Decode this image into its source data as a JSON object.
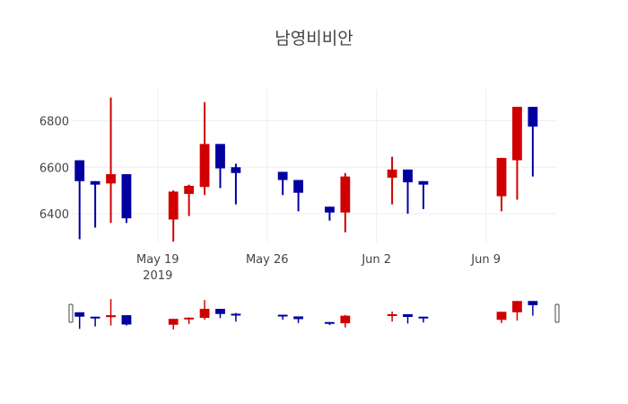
{
  "chart_data": {
    "type": "candlestick",
    "title": "남영비비안",
    "xlabel": "",
    "ylabel": "",
    "increasing_color": "#d10000",
    "decreasing_color": "#0000a0",
    "grid": true,
    "ylim": [
      6260,
      6900
    ],
    "yticks": [
      6400,
      6600,
      6800
    ],
    "xticks": [
      {
        "date": "2019-05-19",
        "label": "May 19",
        "sublabel": "2019"
      },
      {
        "date": "2019-05-26",
        "label": "May 26",
        "sublabel": ""
      },
      {
        "date": "2019-06-02",
        "label": "Jun 2",
        "sublabel": ""
      },
      {
        "date": "2019-06-09",
        "label": "Jun 9",
        "sublabel": ""
      }
    ],
    "xrange": [
      "2019-05-13T12:00",
      "2019-06-13T12:00"
    ],
    "rangeslider": true,
    "candles": [
      {
        "date": "2019-05-14",
        "open": 6630,
        "high": 6630,
        "low": 6290,
        "close": 6540
      },
      {
        "date": "2019-05-15",
        "open": 6540,
        "high": 6540,
        "low": 6340,
        "close": 6525
      },
      {
        "date": "2019-05-16",
        "open": 6530,
        "high": 6900,
        "low": 6360,
        "close": 6570
      },
      {
        "date": "2019-05-17",
        "open": 6570,
        "high": 6570,
        "low": 6360,
        "close": 6380
      },
      {
        "date": "2019-05-20",
        "open": 6375,
        "high": 6500,
        "low": 6280,
        "close": 6495
      },
      {
        "date": "2019-05-21",
        "open": 6485,
        "high": 6525,
        "low": 6390,
        "close": 6520
      },
      {
        "date": "2019-05-22",
        "open": 6515,
        "high": 6880,
        "low": 6480,
        "close": 6700
      },
      {
        "date": "2019-05-23",
        "open": 6700,
        "high": 6700,
        "low": 6510,
        "close": 6595
      },
      {
        "date": "2019-05-24",
        "open": 6600,
        "high": 6615,
        "low": 6440,
        "close": 6575
      },
      {
        "date": "2019-05-27",
        "open": 6580,
        "high": 6580,
        "low": 6480,
        "close": 6545
      },
      {
        "date": "2019-05-28",
        "open": 6545,
        "high": 6545,
        "low": 6410,
        "close": 6490
      },
      {
        "date": "2019-05-30",
        "open": 6430,
        "high": 6430,
        "low": 6370,
        "close": 6405
      },
      {
        "date": "2019-05-31",
        "open": 6405,
        "high": 6575,
        "low": 6320,
        "close": 6560
      },
      {
        "date": "2019-06-03",
        "open": 6555,
        "high": 6645,
        "low": 6440,
        "close": 6590
      },
      {
        "date": "2019-06-04",
        "open": 6590,
        "high": 6590,
        "low": 6400,
        "close": 6535
      },
      {
        "date": "2019-06-05",
        "open": 6540,
        "high": 6540,
        "low": 6420,
        "close": 6525
      },
      {
        "date": "2019-06-10",
        "open": 6475,
        "high": 6640,
        "low": 6410,
        "close": 6640
      },
      {
        "date": "2019-06-11",
        "open": 6630,
        "high": 6860,
        "low": 6460,
        "close": 6860
      },
      {
        "date": "2019-06-12",
        "open": 6860,
        "high": 6860,
        "low": 6560,
        "close": 6775
      }
    ]
  }
}
